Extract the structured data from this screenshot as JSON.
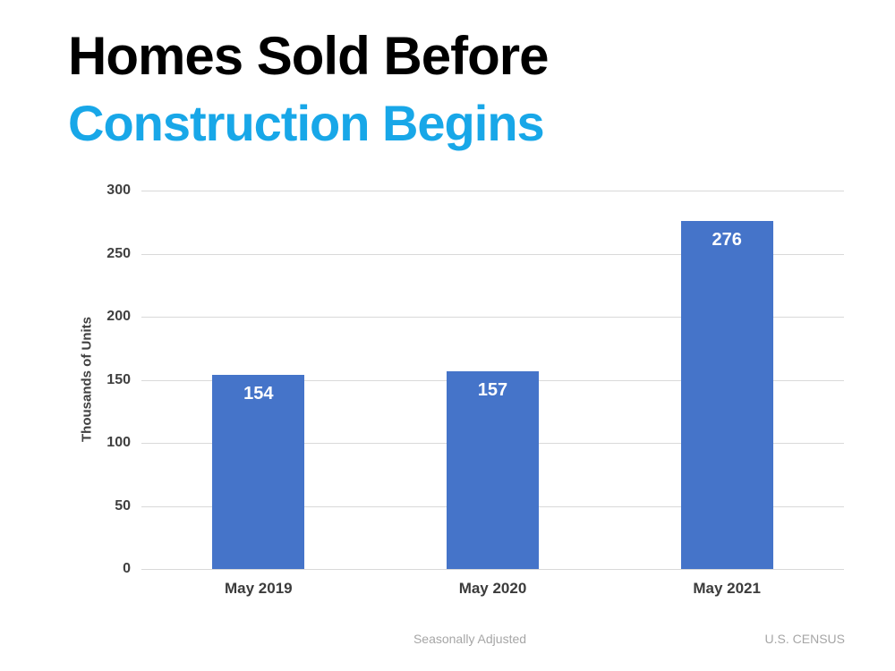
{
  "page": {
    "background": "#ffffff"
  },
  "title": {
    "line1": "Homes Sold Before",
    "line2": "Construction Begins",
    "line1_color": "#000000",
    "line2_color": "#18a7e8"
  },
  "chart_data": {
    "type": "bar",
    "title": "Homes Sold Before Construction Begins",
    "categories": [
      "May 2019",
      "May 2020",
      "May 2021"
    ],
    "values": [
      154,
      157,
      276
    ],
    "xlabel": "",
    "ylabel": "Thousands of Units",
    "ylim": [
      0,
      300
    ],
    "yticks": [
      0,
      50,
      100,
      150,
      200,
      250,
      300
    ],
    "grid": true,
    "legend": false,
    "bar_color": "#4574c9",
    "value_label_color": "#ffffff",
    "axis_text_color": "#404040",
    "gridline_color": "#d9d9d9"
  },
  "footer": {
    "left_note": "Seasonally Adjusted",
    "right_note": "U.S. CENSUS",
    "color": "#a6a6a6"
  }
}
